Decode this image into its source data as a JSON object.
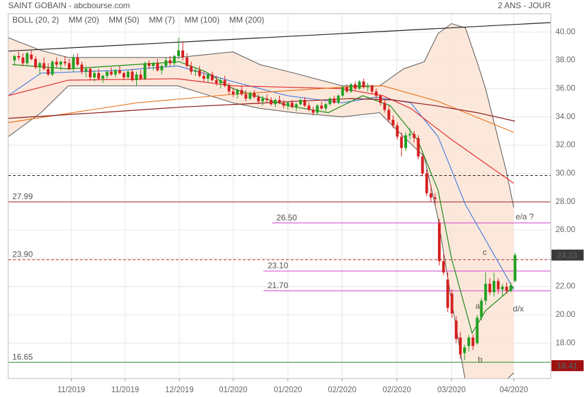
{
  "chart_data": {
    "type": "candlestick",
    "title": "SAINT GOBAIN - abcbourse.com",
    "subtitle": "2 ANS - JOUR",
    "xlim": [
      -1.5,
      127.5
    ],
    "ylim": [
      15.5,
      41.3
    ],
    "grid": true,
    "up_color": "#22a022",
    "down_color": "#d42020",
    "xticks": [
      {
        "value": 13.5,
        "label": "11/2019"
      },
      {
        "value": 26.3,
        "label": "11/2019"
      },
      {
        "value": 39.2,
        "label": "12/2019"
      },
      {
        "value": 52,
        "label": "01/2020"
      },
      {
        "value": 65,
        "label": "01/2020"
      },
      {
        "value": 77.9,
        "label": "02/2020"
      },
      {
        "value": 90.9,
        "label": "02/2020"
      },
      {
        "value": 103.9,
        "label": "03/2020"
      },
      {
        "value": 118.7,
        "label": "04/2020"
      }
    ],
    "yticks": [
      {
        "value": 18,
        "label": "18.00"
      },
      {
        "value": 20,
        "label": "20.00"
      },
      {
        "value": 22,
        "label": "22.00"
      },
      {
        "value": 24,
        "label": "24.00"
      },
      {
        "value": 26,
        "label": "26.00"
      },
      {
        "value": 28,
        "label": "28.00"
      },
      {
        "value": 30,
        "label": "30.00"
      },
      {
        "value": 32,
        "label": "32.00"
      },
      {
        "value": 34,
        "label": "34.00"
      },
      {
        "value": 36,
        "label": "36.00"
      },
      {
        "value": 38,
        "label": "38.00"
      },
      {
        "value": 40,
        "label": "40.00"
      }
    ],
    "candles": [
      [
        38.0,
        38.4,
        37.7,
        38.3
      ],
      [
        38.3,
        38.6,
        38.0,
        38.2
      ],
      [
        38.2,
        38.5,
        37.6,
        37.8
      ],
      [
        37.8,
        38.6,
        37.7,
        38.5
      ],
      [
        38.4,
        38.7,
        38.0,
        38.1
      ],
      [
        38.1,
        38.3,
        37.4,
        37.5
      ],
      [
        37.5,
        37.9,
        37.0,
        37.8
      ],
      [
        37.8,
        38.2,
        37.3,
        37.4
      ],
      [
        37.4,
        37.8,
        36.9,
        37.0
      ],
      [
        37.0,
        38.0,
        36.9,
        37.9
      ],
      [
        37.9,
        38.2,
        37.5,
        37.7
      ],
      [
        37.7,
        38.0,
        37.3,
        37.9
      ],
      [
        37.9,
        38.3,
        37.6,
        37.8
      ],
      [
        37.8,
        38.1,
        37.3,
        37.4
      ],
      [
        37.4,
        38.4,
        37.2,
        38.2
      ],
      [
        38.2,
        38.5,
        37.6,
        37.7
      ],
      [
        37.7,
        37.9,
        37.0,
        37.2
      ],
      [
        37.2,
        37.6,
        36.8,
        37.4
      ],
      [
        37.4,
        37.5,
        36.6,
        36.8
      ],
      [
        36.8,
        37.3,
        36.5,
        37.1
      ],
      [
        37.1,
        37.4,
        36.6,
        36.7
      ],
      [
        36.7,
        37.0,
        36.4,
        36.9
      ],
      [
        36.9,
        37.3,
        36.7,
        37.2
      ],
      [
        37.2,
        37.5,
        36.9,
        37.0
      ],
      [
        37.0,
        37.4,
        36.8,
        37.3
      ],
      [
        37.3,
        37.6,
        37.0,
        37.1
      ],
      [
        37.1,
        37.2,
        36.6,
        36.8
      ],
      [
        36.8,
        37.3,
        36.7,
        37.2
      ],
      [
        37.2,
        37.4,
        36.5,
        36.6
      ],
      [
        36.6,
        37.2,
        36.2,
        37.0
      ],
      [
        37.0,
        37.3,
        36.6,
        36.7
      ],
      [
        36.7,
        37.9,
        36.6,
        37.8
      ],
      [
        37.8,
        38.0,
        37.4,
        37.6
      ],
      [
        37.6,
        37.9,
        37.3,
        37.8
      ],
      [
        37.8,
        38.1,
        37.2,
        37.3
      ],
      [
        37.3,
        37.7,
        37.0,
        37.6
      ],
      [
        37.6,
        38.2,
        37.5,
        38.0
      ],
      [
        38.0,
        38.3,
        37.6,
        37.8
      ],
      [
        37.8,
        38.4,
        37.6,
        38.3
      ],
      [
        38.3,
        39.6,
        38.1,
        38.7
      ],
      [
        38.7,
        39.3,
        38.0,
        38.2
      ],
      [
        38.2,
        38.5,
        37.5,
        37.6
      ],
      [
        37.6,
        37.9,
        37.0,
        37.2
      ],
      [
        37.2,
        37.5,
        36.9,
        37.3
      ],
      [
        37.3,
        37.6,
        36.8,
        36.9
      ],
      [
        36.9,
        37.2,
        36.5,
        36.7
      ],
      [
        36.7,
        37.1,
        36.4,
        37.0
      ],
      [
        37.0,
        37.2,
        36.5,
        36.6
      ],
      [
        36.6,
        36.9,
        36.2,
        36.4
      ],
      [
        36.4,
        36.8,
        36.0,
        36.6
      ],
      [
        36.6,
        36.9,
        36.1,
        36.2
      ],
      [
        36.2,
        36.4,
        35.6,
        35.8
      ],
      [
        35.8,
        36.1,
        35.4,
        35.6
      ],
      [
        35.6,
        36.0,
        35.3,
        35.9
      ],
      [
        35.9,
        36.2,
        35.5,
        35.6
      ],
      [
        35.6,
        35.9,
        35.1,
        35.3
      ],
      [
        35.3,
        35.8,
        35.2,
        35.7
      ],
      [
        35.7,
        35.9,
        35.3,
        35.4
      ],
      [
        35.4,
        35.6,
        34.9,
        35.1
      ],
      [
        35.1,
        35.5,
        34.8,
        35.3
      ],
      [
        35.3,
        35.6,
        35.0,
        35.2
      ],
      [
        35.2,
        35.4,
        34.8,
        34.9
      ],
      [
        34.9,
        35.3,
        34.7,
        35.2
      ],
      [
        35.2,
        35.5,
        34.9,
        35.0
      ],
      [
        35.0,
        35.2,
        34.6,
        34.8
      ],
      [
        34.8,
        35.1,
        34.5,
        35.0
      ],
      [
        35.0,
        35.2,
        34.6,
        34.7
      ],
      [
        34.7,
        35.0,
        34.4,
        34.9
      ],
      [
        34.9,
        35.3,
        34.8,
        35.2
      ],
      [
        35.2,
        35.4,
        34.7,
        34.8
      ],
      [
        34.8,
        35.0,
        34.4,
        34.5
      ],
      [
        34.5,
        34.7,
        34.1,
        34.3
      ],
      [
        34.3,
        34.9,
        34.2,
        34.8
      ],
      [
        34.8,
        35.1,
        34.5,
        34.6
      ],
      [
        34.6,
        35.0,
        34.4,
        34.9
      ],
      [
        34.9,
        35.4,
        34.8,
        35.3
      ],
      [
        35.3,
        35.5,
        34.9,
        35.0
      ],
      [
        35.0,
        35.6,
        34.9,
        35.5
      ],
      [
        35.5,
        36.2,
        35.4,
        36.1
      ],
      [
        36.1,
        36.3,
        35.7,
        35.8
      ],
      [
        35.8,
        36.4,
        35.7,
        36.3
      ],
      [
        36.3,
        36.5,
        35.9,
        36.0
      ],
      [
        36.0,
        36.6,
        35.9,
        36.5
      ],
      [
        36.5,
        36.7,
        36.0,
        36.1
      ],
      [
        36.1,
        36.4,
        35.8,
        36.2
      ],
      [
        36.2,
        36.3,
        35.6,
        35.8
      ],
      [
        35.8,
        36.0,
        35.3,
        35.5
      ],
      [
        35.5,
        35.6,
        34.8,
        35.0
      ],
      [
        35.0,
        35.2,
        34.3,
        34.5
      ],
      [
        34.5,
        34.8,
        33.6,
        33.8
      ],
      [
        33.8,
        34.1,
        33.2,
        33.4
      ],
      [
        33.4,
        33.6,
        32.4,
        32.6
      ],
      [
        32.6,
        32.9,
        31.2,
        31.8
      ],
      [
        31.8,
        32.9,
        31.6,
        32.7
      ],
      [
        32.7,
        33.2,
        32.4,
        32.8
      ],
      [
        32.8,
        33.0,
        32.2,
        32.5
      ],
      [
        32.5,
        32.7,
        31.0,
        31.2
      ],
      [
        31.2,
        31.4,
        29.8,
        30.0
      ],
      [
        30.0,
        30.3,
        28.4,
        28.6
      ],
      [
        28.6,
        29.2,
        28.0,
        28.3
      ],
      [
        28.3,
        28.6,
        27.8,
        28.2
      ],
      [
        26.5,
        26.8,
        23.5,
        23.8
      ],
      [
        23.8,
        24.3,
        22.8,
        23.0
      ],
      [
        22.5,
        23.0,
        20.2,
        20.5
      ],
      [
        21.5,
        21.8,
        19.8,
        20.1
      ],
      [
        19.6,
        19.9,
        18.0,
        18.3
      ],
      [
        18.4,
        18.8,
        16.9,
        17.2
      ],
      [
        17.3,
        17.9,
        16.8,
        17.7
      ],
      [
        17.8,
        18.6,
        17.4,
        18.4
      ],
      [
        18.4,
        18.6,
        17.5,
        17.8
      ],
      [
        18.0,
        20.0,
        17.9,
        19.8
      ],
      [
        19.8,
        21.2,
        19.6,
        21.0
      ],
      [
        21.0,
        23.0,
        20.7,
        22.2
      ],
      [
        22.2,
        22.6,
        21.4,
        21.6
      ],
      [
        21.6,
        23.0,
        21.3,
        22.4
      ],
      [
        22.4,
        22.6,
        21.5,
        21.8
      ],
      [
        21.8,
        22.2,
        21.3,
        22.0
      ],
      [
        22.0,
        22.3,
        21.5,
        21.7
      ],
      [
        21.7,
        22.3,
        21.6,
        22.1
      ],
      [
        22.4,
        24.4,
        22.3,
        24.23
      ]
    ],
    "series": [
      {
        "name": "BOLL (20, 2)",
        "color": "#555555",
        "fill": "#fbe0cf",
        "x": [
          -1.5,
          6.3,
          12.8,
          38.8,
          45.4,
          51.9,
          58.4,
          66.5,
          77.9,
          86.8,
          92.5,
          97.4,
          100.7,
          103.9,
          107.2,
          110.4,
          112.0,
          116.9,
          118.7
        ],
        "upper": [
          39.6,
          38.7,
          38.2,
          38.2,
          38.4,
          38.6,
          37.7,
          37.1,
          36.2,
          36.2,
          37.4,
          37.9,
          39.9,
          40.6,
          40.3,
          37.5,
          36.0,
          30.2,
          27.6
        ],
        "lower": [
          32.6,
          34.3,
          36.2,
          36.2,
          35.6,
          35.0,
          34.6,
          34.3,
          34.0,
          34.3,
          32.6,
          31.2,
          26.8,
          21.0,
          15.3,
          14.6,
          14.8,
          15.4,
          15.9
        ]
      },
      {
        "name": "MM (20)",
        "color": "#4a7fe0",
        "x": [
          -1.5,
          6.3,
          25.8,
          38.8,
          51.9,
          64.9,
          77.9,
          86.0,
          94.2,
          100.7,
          107.2,
          113.7,
          118.7
        ],
        "values": [
          35.5,
          37.1,
          37.3,
          37.6,
          36.5,
          35.5,
          35.0,
          35.4,
          35.0,
          32.6,
          27.8,
          24.4,
          21.8
        ]
      },
      {
        "name": "MM (50)",
        "color": "#e03030",
        "x": [
          -1.5,
          12.8,
          38.8,
          51.9,
          77.9,
          87.6,
          94.2,
          103.9,
          118.7
        ],
        "values": [
          35.5,
          36.6,
          36.7,
          36.2,
          36.0,
          35.5,
          34.6,
          32.4,
          29.3
        ]
      },
      {
        "name": "MM (7)",
        "color": "#1a8a1a",
        "x": [
          -0.5,
          12.8,
          39.2,
          45.4,
          51.9,
          64.9,
          74.6,
          82.8,
          89.3,
          95.8,
          100.7,
          103.9,
          108.8,
          112.0,
          118.7
        ],
        "values": [
          37.7,
          37.4,
          37.9,
          37.2,
          36.0,
          34.8,
          34.3,
          35.5,
          34.8,
          32.4,
          28.8,
          24.0,
          18.7,
          20.3,
          22.0
        ]
      },
      {
        "name": "MM (100)",
        "color": "#e87722",
        "x": [
          -1.5,
          29.1,
          51.9,
          77.9,
          87.6,
          100.7,
          118.7
        ],
        "values": [
          33.6,
          35.0,
          35.6,
          36.1,
          36.2,
          35.1,
          32.9
        ]
      },
      {
        "name": "MM (200)",
        "color": "#8b1a1a",
        "x": [
          -1.5,
          20,
          40,
          60,
          80,
          90,
          100,
          110,
          119
        ],
        "values": [
          33.9,
          34.3,
          34.7,
          35.0,
          35.3,
          35.2,
          34.8,
          34.3,
          33.7
        ]
      }
    ],
    "trendline": {
      "color": "#222222",
      "x": [
        -1.5,
        127.5
      ],
      "values": [
        38.65,
        40.67
      ]
    },
    "levels": [
      {
        "value": 29.85,
        "color": "#222222",
        "dashed": true
      },
      {
        "value": 27.99,
        "label": "27.99",
        "color": "#a02020"
      },
      {
        "value": 26.5,
        "label": "26.50",
        "color": "#d040d0",
        "from": 61.3
      },
      {
        "value": 23.9,
        "label": "23.90",
        "color": "#c03030",
        "dashed": true
      },
      {
        "value": 23.1,
        "label": "23.10",
        "color": "#d040d0",
        "from": 59.2
      },
      {
        "value": 21.7,
        "label": "21.70",
        "color": "#d040d0",
        "from": 59.2
      },
      {
        "value": 16.65,
        "label": "16.65",
        "color": "#2a8a2a"
      }
    ],
    "annotations": [
      {
        "text": "e/a ?",
        "x": 121.3,
        "y": 26.9
      },
      {
        "text": "c",
        "x": 111.8,
        "y": 24.4
      },
      {
        "text": "a",
        "x": 110.1,
        "y": 20.6
      },
      {
        "text": "b",
        "x": 110.7,
        "y": 16.8
      },
      {
        "text": "d/x",
        "x": 119.8,
        "y": 20.4
      }
    ],
    "annotation_color": "#3a3a8a",
    "price_labels": [
      {
        "value": 24.23,
        "color": "#3a3a3a"
      },
      {
        "value": 16.41,
        "color": "#a01010"
      }
    ]
  }
}
